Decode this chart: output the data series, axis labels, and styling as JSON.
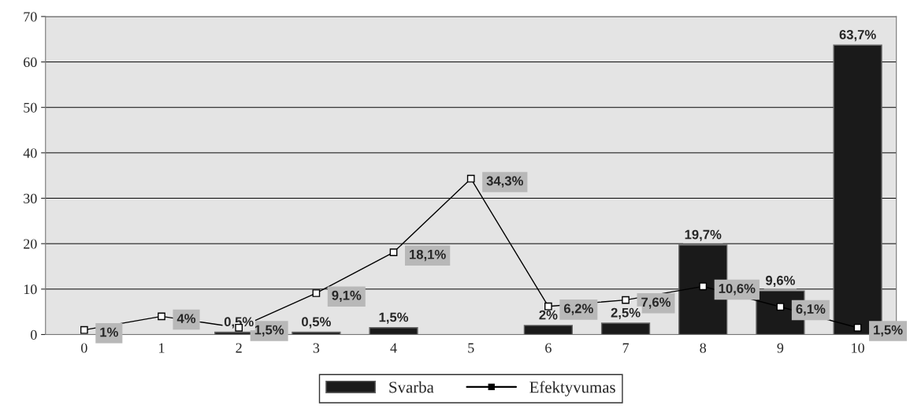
{
  "chart_data": {
    "type": "bar",
    "categories": [
      "0",
      "1",
      "2",
      "3",
      "4",
      "5",
      "6",
      "7",
      "8",
      "9",
      "10"
    ],
    "series": [
      {
        "name": "Svarba",
        "color": "#1a1a1a",
        "values": [
          null,
          null,
          0.5,
          0.5,
          1.5,
          null,
          2,
          2.5,
          19.7,
          9.6,
          63.7
        ],
        "value_labels": [
          null,
          null,
          "0,5%",
          "0,5%",
          "1,5%",
          null,
          "2%",
          "2,5%",
          "19,7%",
          "9,6%",
          "63,7%"
        ]
      },
      {
        "name": "Efektyvumas",
        "type": "line",
        "color": "#000000",
        "marker": "square",
        "line_style": "solid",
        "values": [
          1,
          4,
          1.5,
          9.1,
          18.1,
          34.3,
          6.2,
          7.6,
          10.6,
          6.1,
          1.5
        ],
        "value_labels": [
          "1%",
          "4%",
          "1,5%",
          "9,1%",
          "18,1%",
          "34,3%",
          "6,2%",
          "7,6%",
          "10,6%",
          "6,1%",
          "1,5%"
        ]
      }
    ],
    "ylim": [
      0,
      70
    ],
    "yticks": [
      0,
      10,
      20,
      30,
      40,
      50,
      60,
      70
    ],
    "grid": "y",
    "legend": "bottom"
  }
}
